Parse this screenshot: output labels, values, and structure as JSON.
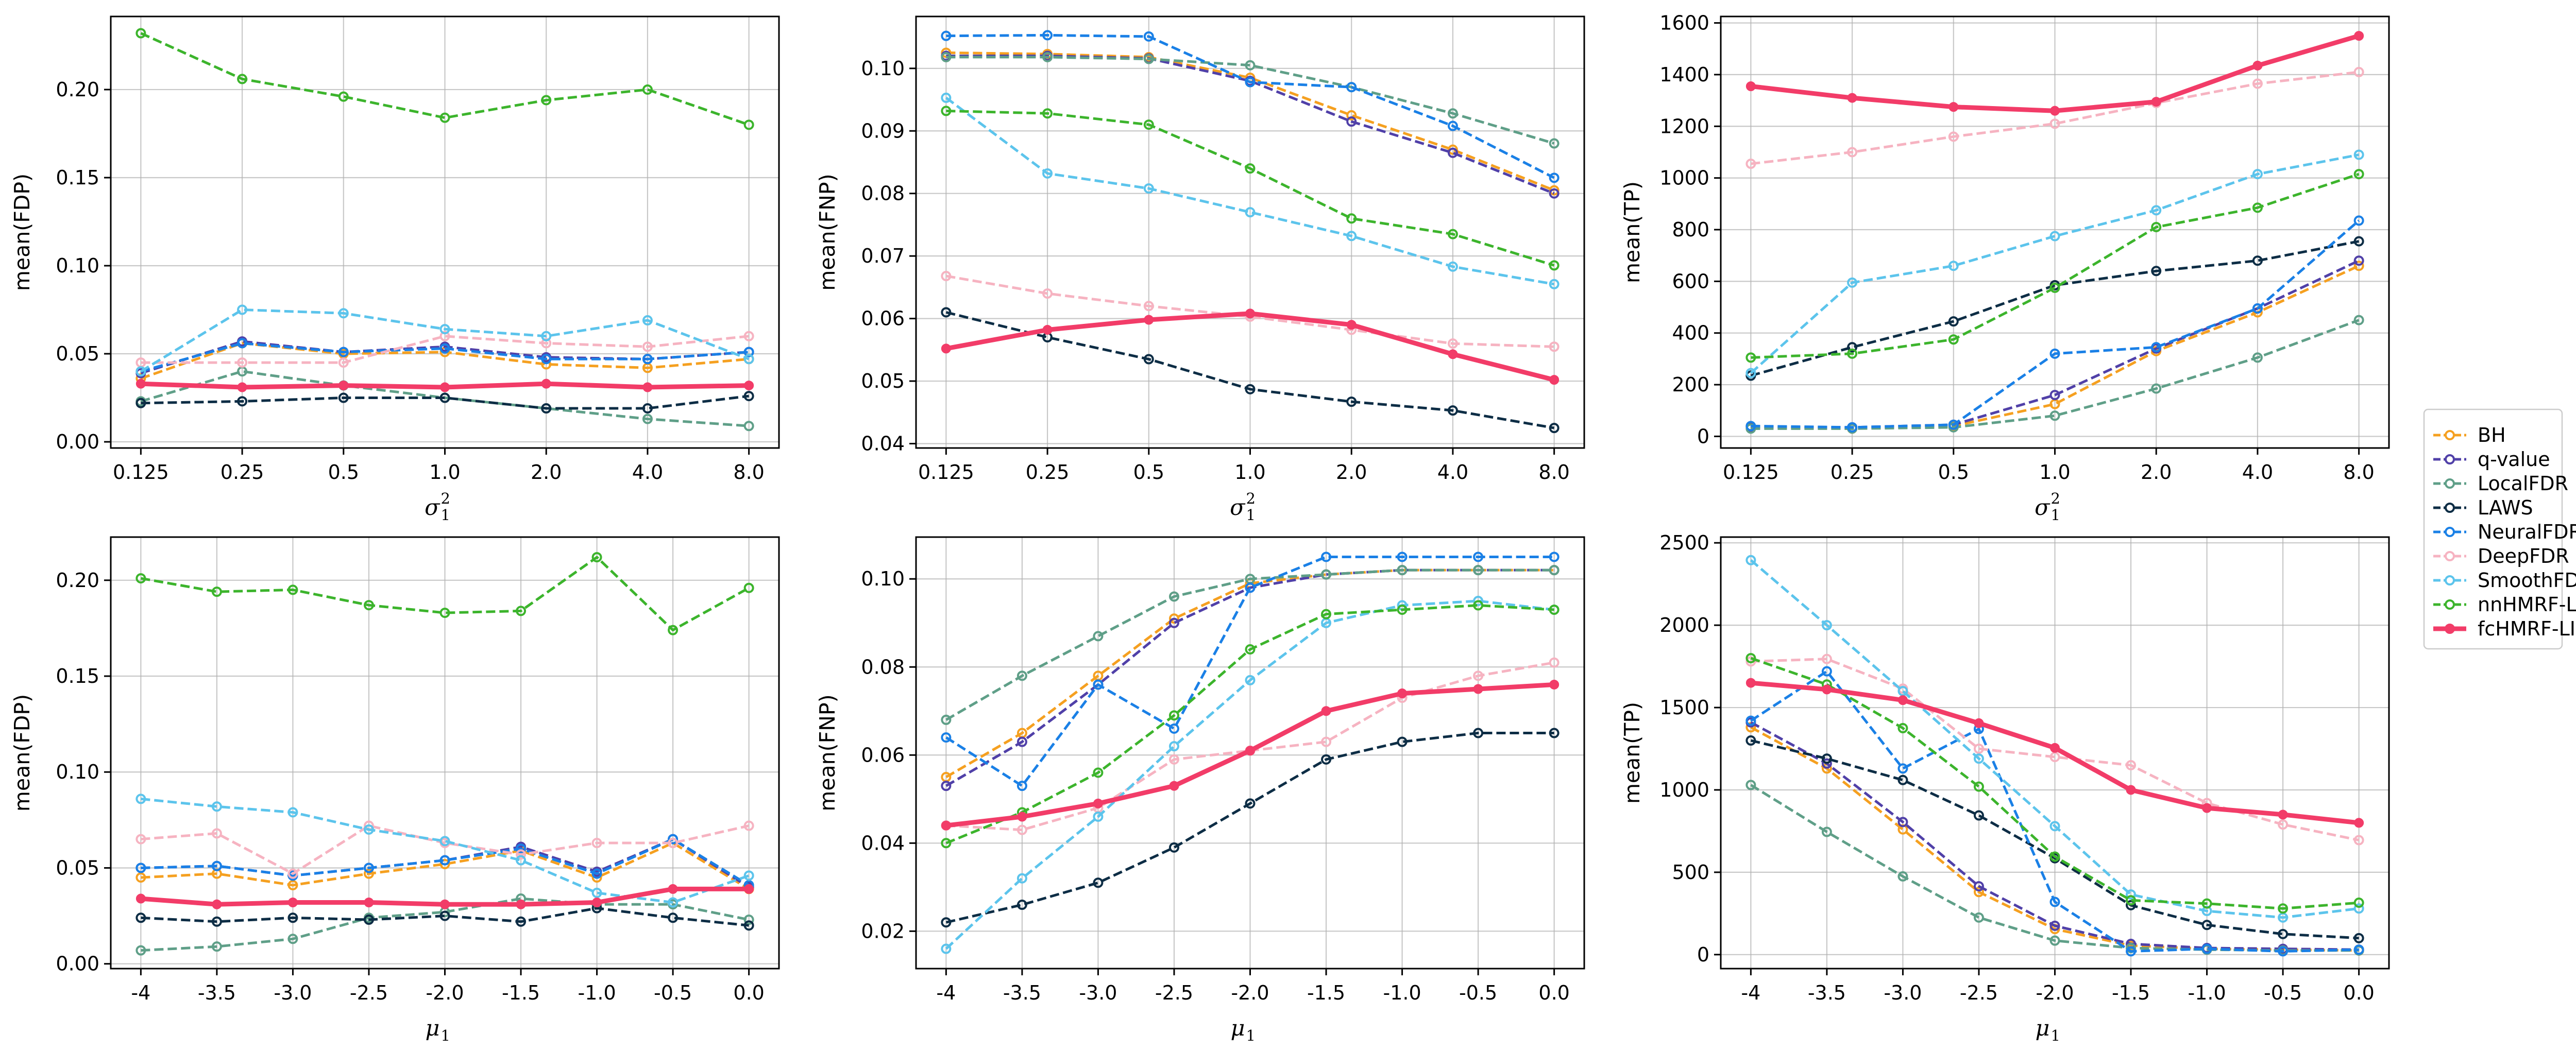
{
  "figure_title": "",
  "legend": {
    "placement": "right-center",
    "entries": [
      "BH",
      "q-value",
      "LocalFDR",
      "LAWS",
      "NeuralFDR",
      "DeepFDR",
      "SmoothFDR",
      "nnHMRF-LIS",
      "fcHMRF-LIS"
    ]
  },
  "series_styles": [
    {
      "name": "BH",
      "color": "#f5a020",
      "dash": true
    },
    {
      "name": "q-value",
      "color": "#5040a8",
      "dash": true
    },
    {
      "name": "LocalFDR",
      "color": "#5f9f88",
      "dash": true
    },
    {
      "name": "LAWS",
      "color": "#0d2d45",
      "dash": true
    },
    {
      "name": "NeuralFDR",
      "color": "#1a80e6",
      "dash": true
    },
    {
      "name": "DeepFDR",
      "color": "#f6b3c1",
      "dash": true
    },
    {
      "name": "SmoothFDR",
      "color": "#5cc4ec",
      "dash": true
    },
    {
      "name": "nnHMRF-LIS",
      "color": "#3cb42c",
      "dash": true
    },
    {
      "name": "fcHMRF-LIS",
      "color": "#f23c68",
      "dash": false
    }
  ],
  "chart_data": [
    {
      "type": "line",
      "panel": "top-left",
      "title": "",
      "xlabel": {
        "symbol": "σ",
        "sub": "1",
        "sup": "2"
      },
      "ylabel": "mean(FDP)",
      "categories": [
        "0.125",
        "0.25",
        "0.5",
        "1.0",
        "2.0",
        "4.0",
        "8.0"
      ],
      "ylim": [
        -0.0035,
        0.2415
      ],
      "yticks": [
        0.0,
        0.05,
        0.1,
        0.15,
        0.2
      ],
      "ytick_labels": [
        "0.00",
        "0.05",
        "0.10",
        "0.15",
        "0.20"
      ],
      "grid": true,
      "series": [
        {
          "name": "BH",
          "values": [
            0.036,
            0.056,
            0.05,
            0.051,
            0.044,
            0.042,
            0.047
          ]
        },
        {
          "name": "q-value",
          "values": [
            0.039,
            0.057,
            0.051,
            0.054,
            0.048,
            0.047,
            0.051
          ]
        },
        {
          "name": "LocalFDR",
          "values": [
            0.023,
            0.04,
            0.032,
            0.025,
            0.019,
            0.013,
            0.009
          ]
        },
        {
          "name": "LAWS",
          "values": [
            0.022,
            0.023,
            0.025,
            0.025,
            0.019,
            0.019,
            0.026
          ]
        },
        {
          "name": "NeuralFDR",
          "values": [
            0.04,
            0.056,
            0.051,
            0.053,
            0.047,
            0.047,
            0.051
          ]
        },
        {
          "name": "DeepFDR",
          "values": [
            0.045,
            0.045,
            0.045,
            0.06,
            0.056,
            0.054,
            0.06
          ]
        },
        {
          "name": "SmoothFDR",
          "values": [
            0.04,
            0.075,
            0.073,
            0.064,
            0.06,
            0.069,
            0.047
          ]
        },
        {
          "name": "nnHMRF-LIS",
          "values": [
            0.232,
            0.206,
            0.196,
            0.184,
            0.194,
            0.2,
            0.18
          ]
        },
        {
          "name": "fcHMRF-LIS",
          "values": [
            0.033,
            0.031,
            0.032,
            0.031,
            0.033,
            0.031,
            0.032
          ]
        }
      ]
    },
    {
      "type": "line",
      "panel": "top-middle",
      "title": "",
      "xlabel": {
        "symbol": "σ",
        "sub": "1",
        "sup": "2"
      },
      "ylabel": "mean(FNP)",
      "categories": [
        "0.125",
        "0.25",
        "0.5",
        "1.0",
        "2.0",
        "4.0",
        "8.0"
      ],
      "ylim": [
        0.0393,
        0.1083
      ],
      "yticks": [
        0.04,
        0.05,
        0.06,
        0.07,
        0.08,
        0.09,
        0.1
      ],
      "ytick_labels": [
        "0.04",
        "0.05",
        "0.06",
        "0.07",
        "0.08",
        "0.09",
        "0.10"
      ],
      "grid": true,
      "series": [
        {
          "name": "BH",
          "values": [
            0.1025,
            0.1023,
            0.1018,
            0.0985,
            0.0925,
            0.087,
            0.0805
          ]
        },
        {
          "name": "q-value",
          "values": [
            0.102,
            0.102,
            0.1016,
            0.098,
            0.0915,
            0.0865,
            0.08
          ]
        },
        {
          "name": "LocalFDR",
          "values": [
            0.1018,
            0.1018,
            0.1015,
            0.1005,
            0.097,
            0.0928,
            0.088
          ]
        },
        {
          "name": "LAWS",
          "values": [
            0.061,
            0.057,
            0.0535,
            0.0487,
            0.0467,
            0.0453,
            0.0425
          ]
        },
        {
          "name": "NeuralFDR",
          "values": [
            0.1052,
            0.1053,
            0.1051,
            0.0978,
            0.097,
            0.0908,
            0.0825
          ]
        },
        {
          "name": "DeepFDR",
          "values": [
            0.0668,
            0.064,
            0.062,
            0.0603,
            0.0582,
            0.056,
            0.0555
          ]
        },
        {
          "name": "SmoothFDR",
          "values": [
            0.0953,
            0.0832,
            0.0808,
            0.077,
            0.0732,
            0.0683,
            0.0655
          ]
        },
        {
          "name": "nnHMRF-LIS",
          "values": [
            0.0932,
            0.0928,
            0.091,
            0.084,
            0.076,
            0.0735,
            0.0685
          ]
        },
        {
          "name": "fcHMRF-LIS",
          "values": [
            0.0552,
            0.0582,
            0.0598,
            0.0608,
            0.059,
            0.0543,
            0.0502
          ]
        }
      ]
    },
    {
      "type": "line",
      "panel": "top-right",
      "title": "",
      "xlabel": {
        "symbol": "σ",
        "sub": "1",
        "sup": "2"
      },
      "ylabel": "mean(TP)",
      "categories": [
        "0.125",
        "0.25",
        "0.5",
        "1.0",
        "2.0",
        "4.0",
        "8.0"
      ],
      "ylim": [
        -45,
        1625
      ],
      "yticks": [
        0,
        200,
        400,
        600,
        800,
        1000,
        1200,
        1400,
        1600
      ],
      "ytick_labels": [
        "0",
        "200",
        "400",
        "600",
        "800",
        "1000",
        "1200",
        "1400",
        "1600"
      ],
      "grid": true,
      "series": [
        {
          "name": "BH",
          "values": [
            35,
            30,
            40,
            125,
            330,
            480,
            660
          ]
        },
        {
          "name": "q-value",
          "values": [
            38,
            35,
            45,
            160,
            340,
            495,
            680
          ]
        },
        {
          "name": "LocalFDR",
          "values": [
            30,
            30,
            35,
            80,
            185,
            305,
            450
          ]
        },
        {
          "name": "LAWS",
          "values": [
            235,
            345,
            445,
            585,
            640,
            680,
            755
          ]
        },
        {
          "name": "NeuralFDR",
          "values": [
            40,
            35,
            45,
            320,
            345,
            495,
            835
          ]
        },
        {
          "name": "DeepFDR",
          "values": [
            1055,
            1100,
            1160,
            1210,
            1290,
            1365,
            1410
          ]
        },
        {
          "name": "SmoothFDR",
          "values": [
            245,
            595,
            660,
            775,
            875,
            1015,
            1090
          ]
        },
        {
          "name": "nnHMRF-LIS",
          "values": [
            305,
            320,
            375,
            575,
            810,
            885,
            1015
          ]
        },
        {
          "name": "fcHMRF-LIS",
          "values": [
            1355,
            1310,
            1275,
            1260,
            1295,
            1435,
            1550
          ]
        }
      ]
    },
    {
      "type": "line",
      "panel": "bottom-left",
      "title": "",
      "xlabel": {
        "symbol": "μ",
        "sub": "1",
        "sup": ""
      },
      "ylabel": "mean(FDP)",
      "categories": [
        "-4",
        "-3.5",
        "-3.0",
        "-2.5",
        "-2.0",
        "-1.5",
        "-1.0",
        "-0.5",
        "0.0"
      ],
      "ylim": [
        -0.0025,
        0.2225
      ],
      "yticks": [
        0.0,
        0.05,
        0.1,
        0.15,
        0.2
      ],
      "ytick_labels": [
        "0.00",
        "0.05",
        "0.10",
        "0.15",
        "0.20"
      ],
      "grid": true,
      "series": [
        {
          "name": "BH",
          "values": [
            0.045,
            0.047,
            0.041,
            0.047,
            0.052,
            0.059,
            0.045,
            0.063,
            0.039
          ]
        },
        {
          "name": "q-value",
          "values": [
            0.05,
            0.051,
            0.046,
            0.05,
            0.054,
            0.061,
            0.048,
            0.065,
            0.04
          ]
        },
        {
          "name": "LocalFDR",
          "values": [
            0.007,
            0.009,
            0.013,
            0.024,
            0.027,
            0.034,
            0.031,
            0.031,
            0.023
          ]
        },
        {
          "name": "LAWS",
          "values": [
            0.024,
            0.022,
            0.024,
            0.023,
            0.025,
            0.022,
            0.029,
            0.024,
            0.02
          ]
        },
        {
          "name": "NeuralFDR",
          "values": [
            0.05,
            0.051,
            0.046,
            0.05,
            0.054,
            0.06,
            0.047,
            0.065,
            0.041
          ]
        },
        {
          "name": "DeepFDR",
          "values": [
            0.065,
            0.068,
            0.047,
            0.072,
            0.063,
            0.057,
            0.063,
            0.063,
            0.072
          ]
        },
        {
          "name": "SmoothFDR",
          "values": [
            0.086,
            0.082,
            0.079,
            0.07,
            0.064,
            0.054,
            0.037,
            0.032,
            0.046
          ]
        },
        {
          "name": "nnHMRF-LIS",
          "values": [
            0.201,
            0.194,
            0.195,
            0.187,
            0.183,
            0.184,
            0.212,
            0.174,
            0.196
          ]
        },
        {
          "name": "fcHMRF-LIS",
          "values": [
            0.034,
            0.031,
            0.032,
            0.032,
            0.031,
            0.031,
            0.032,
            0.039,
            0.039
          ]
        }
      ]
    },
    {
      "type": "line",
      "panel": "bottom-middle",
      "title": "",
      "xlabel": {
        "symbol": "μ",
        "sub": "1",
        "sup": ""
      },
      "ylabel": "mean(FNP)",
      "categories": [
        "-4",
        "-3.5",
        "-3.0",
        "-2.5",
        "-2.0",
        "-1.5",
        "-1.0",
        "-0.5",
        "0.0"
      ],
      "ylim": [
        0.0115,
        0.1095
      ],
      "yticks": [
        0.02,
        0.04,
        0.06,
        0.08,
        0.1
      ],
      "ytick_labels": [
        "0.02",
        "0.04",
        "0.06",
        "0.08",
        "0.10"
      ],
      "grid": true,
      "series": [
        {
          "name": "BH",
          "values": [
            0.055,
            0.065,
            0.078,
            0.091,
            0.099,
            0.101,
            0.102,
            0.102,
            0.102
          ]
        },
        {
          "name": "q-value",
          "values": [
            0.053,
            0.063,
            0.076,
            0.09,
            0.098,
            0.101,
            0.102,
            0.102,
            0.102
          ]
        },
        {
          "name": "LocalFDR",
          "values": [
            0.068,
            0.078,
            0.087,
            0.096,
            0.1,
            0.101,
            0.102,
            0.102,
            0.102
          ]
        },
        {
          "name": "LAWS",
          "values": [
            0.022,
            0.026,
            0.031,
            0.039,
            0.049,
            0.059,
            0.063,
            0.065,
            0.065
          ]
        },
        {
          "name": "NeuralFDR",
          "values": [
            0.064,
            0.053,
            0.076,
            0.066,
            0.098,
            0.105,
            0.105,
            0.105,
            0.105
          ]
        },
        {
          "name": "DeepFDR",
          "values": [
            0.044,
            0.043,
            0.048,
            0.059,
            0.061,
            0.063,
            0.073,
            0.078,
            0.081
          ]
        },
        {
          "name": "SmoothFDR",
          "values": [
            0.016,
            0.032,
            0.046,
            0.062,
            0.077,
            0.09,
            0.094,
            0.095,
            0.093
          ]
        },
        {
          "name": "nnHMRF-LIS",
          "values": [
            0.04,
            0.047,
            0.056,
            0.069,
            0.084,
            0.092,
            0.093,
            0.094,
            0.093
          ]
        },
        {
          "name": "fcHMRF-LIS",
          "values": [
            0.044,
            0.046,
            0.049,
            0.053,
            0.061,
            0.07,
            0.074,
            0.075,
            0.076
          ]
        }
      ]
    },
    {
      "type": "line",
      "panel": "bottom-right",
      "title": "",
      "xlabel": {
        "symbol": "μ",
        "sub": "1",
        "sup": ""
      },
      "ylabel": "mean(TP)",
      "categories": [
        "-4",
        "-3.5",
        "-3.0",
        "-2.5",
        "-2.0",
        "-1.5",
        "-1.0",
        "-0.5",
        "0.0"
      ],
      "ylim": [
        -85,
        2535
      ],
      "yticks": [
        0,
        500,
        1000,
        1500,
        2000,
        2500
      ],
      "ytick_labels": [
        "0",
        "500",
        "1000",
        "1500",
        "2000",
        "2500"
      ],
      "grid": true,
      "series": [
        {
          "name": "BH",
          "values": [
            1380,
            1130,
            760,
            380,
            155,
            55,
            35,
            30,
            25
          ]
        },
        {
          "name": "q-value",
          "values": [
            1410,
            1160,
            805,
            415,
            175,
            65,
            40,
            35,
            30
          ]
        },
        {
          "name": "LocalFDR",
          "values": [
            1030,
            745,
            475,
            225,
            85,
            40,
            30,
            25,
            25
          ]
        },
        {
          "name": "LAWS",
          "values": [
            1300,
            1190,
            1060,
            845,
            585,
            300,
            180,
            125,
            100
          ]
        },
        {
          "name": "NeuralFDR",
          "values": [
            1420,
            1720,
            1130,
            1370,
            320,
            20,
            35,
            20,
            30
          ]
        },
        {
          "name": "DeepFDR",
          "values": [
            1780,
            1795,
            1615,
            1250,
            1200,
            1150,
            920,
            790,
            695
          ]
        },
        {
          "name": "SmoothFDR",
          "values": [
            2395,
            2000,
            1600,
            1190,
            780,
            365,
            265,
            225,
            280
          ]
        },
        {
          "name": "nnHMRF-LIS",
          "values": [
            1800,
            1640,
            1375,
            1020,
            595,
            330,
            310,
            280,
            315
          ]
        },
        {
          "name": "fcHMRF-LIS",
          "values": [
            1650,
            1610,
            1545,
            1405,
            1255,
            1000,
            890,
            850,
            800
          ]
        }
      ]
    }
  ]
}
